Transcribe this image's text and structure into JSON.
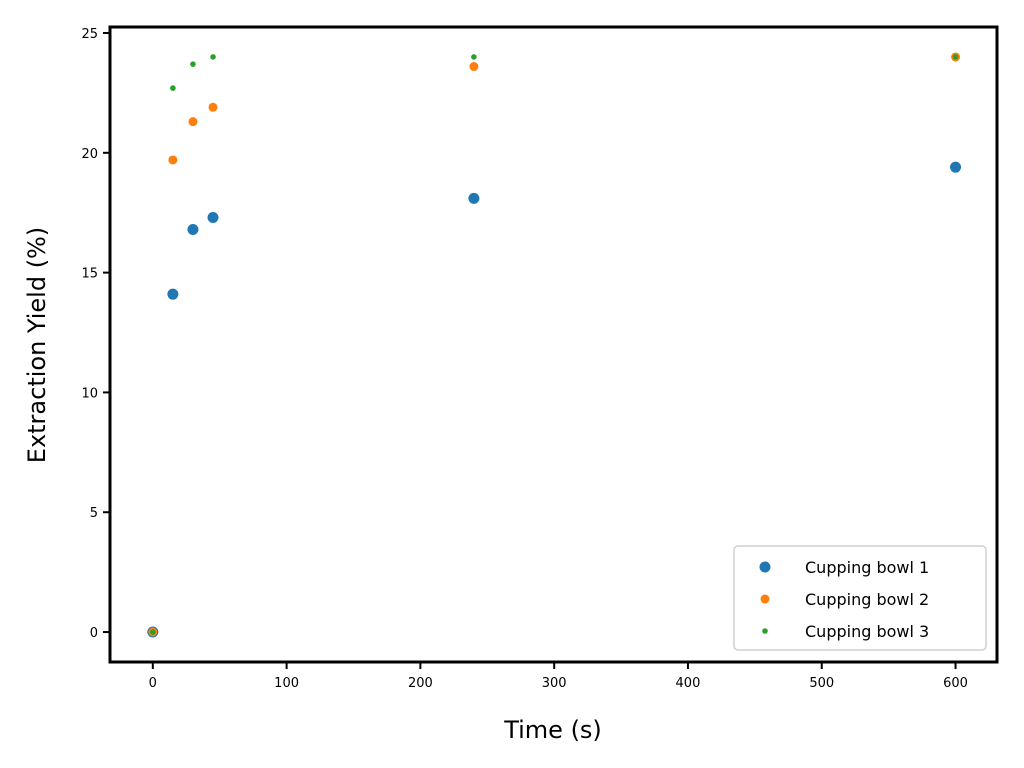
{
  "chart_data": {
    "type": "scatter",
    "title": "",
    "xlabel": "Time (s)",
    "ylabel": "Extraction Yield (%)",
    "xlim": [
      -32,
      631
    ],
    "ylim": [
      -1.25,
      25.25
    ],
    "xticks": [
      0,
      100,
      200,
      300,
      400,
      500,
      600
    ],
    "yticks": [
      0,
      5,
      10,
      15,
      20,
      25
    ],
    "grid": false,
    "legend_position": "lower-right",
    "series": [
      {
        "name": "Cupping bowl 1",
        "color": "#1f77b4",
        "x": [
          0,
          15,
          30,
          45,
          240,
          600
        ],
        "y": [
          0,
          14.1,
          16.8,
          17.3,
          18.1,
          19.4
        ]
      },
      {
        "name": "Cupping bowl 2",
        "color": "#ff7f0e",
        "x": [
          0,
          15,
          30,
          45,
          240,
          600
        ],
        "y": [
          0,
          19.7,
          21.3,
          21.9,
          23.6,
          24.0
        ]
      },
      {
        "name": "Cupping bowl 3",
        "color": "#2ca02c",
        "x": [
          0,
          15,
          30,
          45,
          240,
          600
        ],
        "y": [
          0,
          22.7,
          23.7,
          24.0,
          24.0,
          24.0
        ]
      }
    ]
  }
}
